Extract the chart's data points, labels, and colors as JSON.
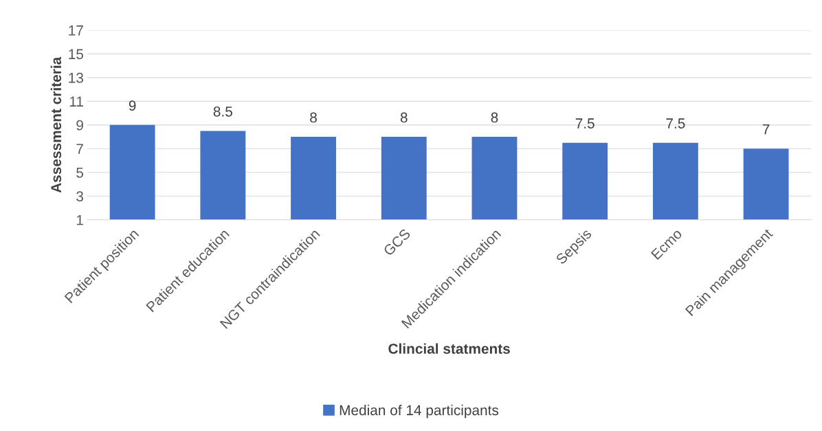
{
  "chart_data": {
    "type": "bar",
    "xlabel": "Clincial statments",
    "ylabel": "Assessment criteria",
    "categories": [
      "Patient position",
      "Patient education",
      "NGT contraindication",
      "GCS",
      "Medication indication",
      "Sepsis",
      "Ecmo",
      "Pain management"
    ],
    "series": [
      {
        "name": "Median of 14 participants",
        "color": "#4472c4",
        "values": [
          9,
          8.5,
          8,
          8,
          8,
          7.5,
          7.5,
          7
        ]
      }
    ],
    "ylim": [
      1,
      17
    ],
    "yticks": [
      1,
      3,
      5,
      7,
      9,
      11,
      13,
      15,
      17
    ],
    "grid": "y",
    "legend": "bottom",
    "data_labels": true
  }
}
